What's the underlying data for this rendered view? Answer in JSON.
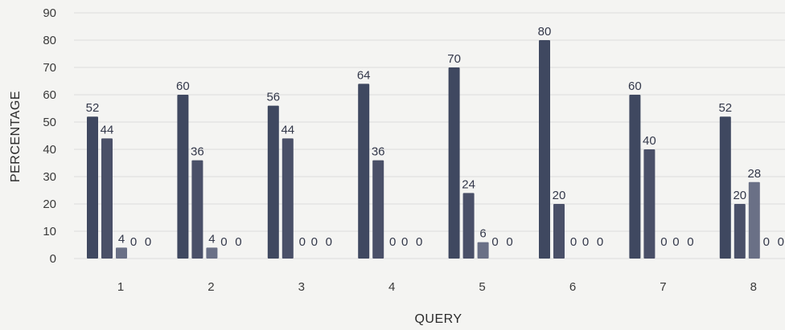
{
  "chart_data": {
    "type": "bar",
    "title": "",
    "xlabel": "QUERY",
    "ylabel": "PERCENTAGE",
    "ylim": [
      0,
      90
    ],
    "yticks": [
      0,
      10,
      20,
      30,
      40,
      50,
      60,
      70,
      80,
      90
    ],
    "grid": true,
    "legend": "none",
    "categories": [
      "1",
      "2",
      "3",
      "4",
      "5",
      "6",
      "7",
      "8"
    ],
    "series": [
      {
        "values": [
          52,
          60,
          56,
          64,
          70,
          80,
          60,
          52
        ],
        "color": "#3f4860"
      },
      {
        "values": [
          44,
          36,
          44,
          36,
          24,
          20,
          40,
          20
        ],
        "color": "#4a5068"
      },
      {
        "values": [
          4,
          4,
          0,
          0,
          6,
          0,
          0,
          28
        ],
        "color": "#6a7086"
      },
      {
        "values": [
          0,
          0,
          0,
          0,
          0,
          0,
          0,
          0
        ],
        "color": "#8a8fa0"
      },
      {
        "values": [
          0,
          0,
          0,
          0,
          0,
          0,
          0,
          0
        ],
        "color": "#a0a4b2"
      }
    ]
  }
}
